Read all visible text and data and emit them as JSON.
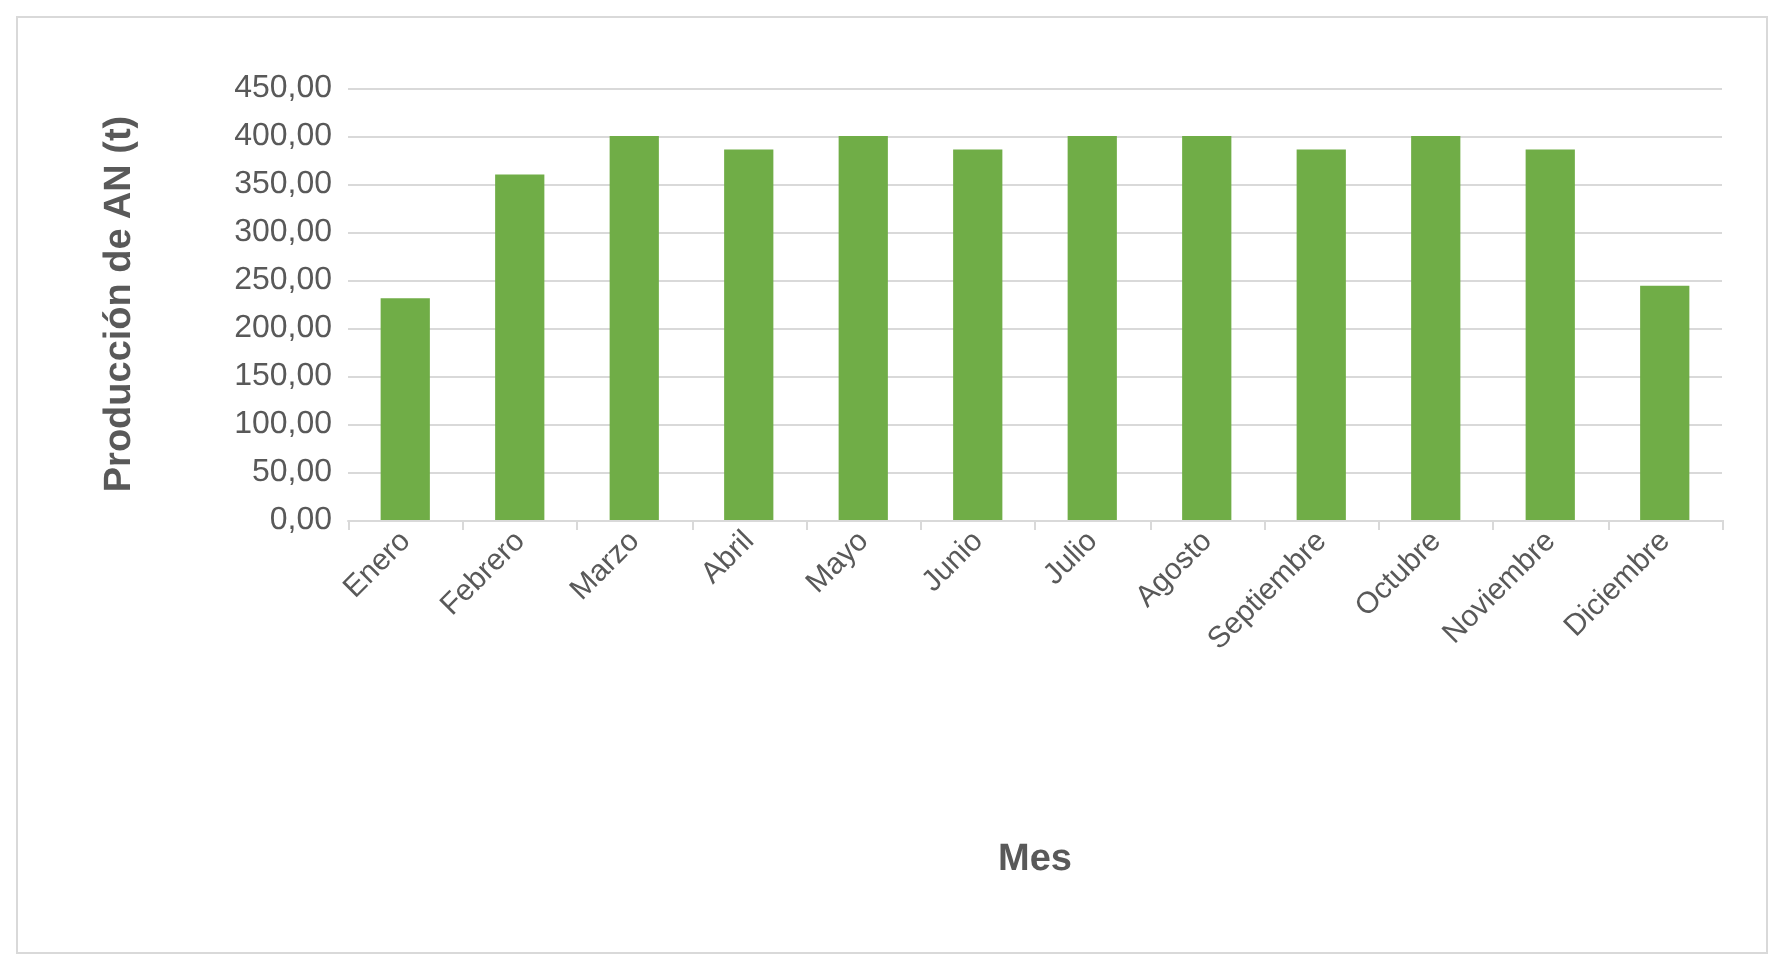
{
  "chart_data": {
    "type": "bar",
    "xlabel": "Mes",
    "ylabel": "Producción de AN (t)",
    "categories": [
      "Enero",
      "Febrero",
      "Marzo",
      "Abril",
      "Mayo",
      "Junio",
      "Julio",
      "Agosto",
      "Septiembre",
      "Octubre",
      "Noviembre",
      "Diciembre"
    ],
    "values": [
      231,
      360,
      400,
      386,
      400,
      386,
      400,
      400,
      386,
      400,
      386,
      244
    ],
    "color": "#70ad47",
    "ylim": [
      0,
      450
    ],
    "yticks": [
      {
        "value": 0,
        "label": "0,00"
      },
      {
        "value": 50,
        "label": "50,00"
      },
      {
        "value": 100,
        "label": "100,00"
      },
      {
        "value": 150,
        "label": "150,00"
      },
      {
        "value": 200,
        "label": "200,00"
      },
      {
        "value": 250,
        "label": "250,00"
      },
      {
        "value": 300,
        "label": "300,00"
      },
      {
        "value": 350,
        "label": "350,00"
      },
      {
        "value": 400,
        "label": "400,00"
      },
      {
        "value": 450,
        "label": "450,00"
      }
    ],
    "grid": "y"
  }
}
